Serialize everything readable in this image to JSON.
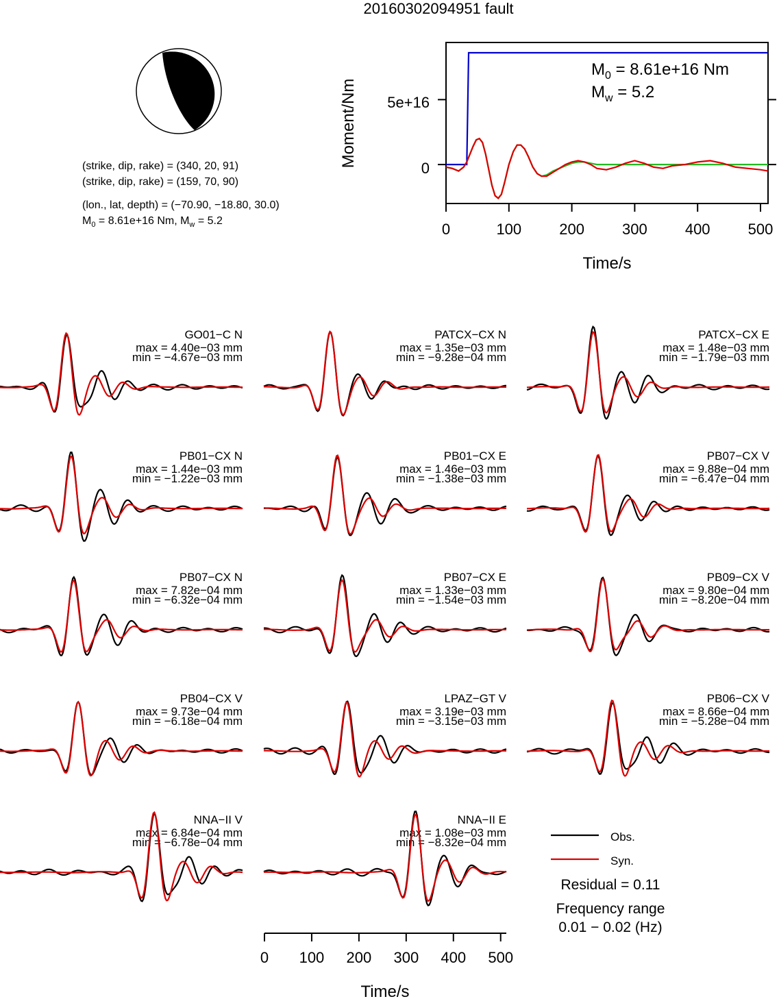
{
  "title": "20160302094951 fault",
  "beachball": {
    "lines": [
      "(strike, dip, rake) = (340, 20, 91)",
      "(strike, dip, rake) = (159, 70, 90)",
      "(lon., lat, depth) = (−70.90, −18.80, 30.0)"
    ],
    "m0_prefix": "M",
    "m0_sub": "0",
    "m0_value": " = 8.61e+16 Nm, M",
    "mw_sub": "w",
    "mw_value": " = 5.2"
  },
  "stf": {
    "m0_prefix": "M",
    "m0_sub": "0",
    "m0_value": " = 8.61e+16 Nm",
    "mw_prefix": "M",
    "mw_sub": "w",
    "mw_value": " = 5.2",
    "ylabel": "Moment/Nm",
    "xlabel": "Time/s",
    "yticks": [
      "0",
      "5e+16"
    ],
    "xticks": [
      "0",
      "100",
      "200",
      "300",
      "400",
      "500"
    ]
  },
  "waveform_xlabel": "Time/s",
  "waveform_xticks": [
    "0",
    "100",
    "200",
    "300",
    "400",
    "500"
  ],
  "legend": {
    "obs": "Obs.",
    "syn": "Syn.",
    "residual": "Residual = 0.11",
    "freq_label": "Frequency range",
    "freq_value": "0.01 − 0.02 (Hz)"
  },
  "colors": {
    "observed": "#000000",
    "synthetic": "#dd0000",
    "moment_rate": "#22bb22",
    "cumulative_moment": "#0000cc"
  },
  "chart_data": [
    {
      "type": "line",
      "xlabel": "Time/s",
      "ylabel": "Moment/Nm",
      "xlim": [
        0,
        512
      ],
      "ylim": [
        -3e+16,
        9.4e+16
      ],
      "series": [
        {
          "x": [
            0,
            33,
            36,
            40,
            512
          ],
          "y": [
            0,
            0,
            8.61e+16,
            8.61e+16,
            8.61e+16
          ]
        },
        {
          "x": [
            0,
            10,
            20,
            28,
            33,
            38,
            43,
            48,
            53,
            58,
            63,
            68,
            73,
            78,
            83,
            88,
            93,
            100,
            107,
            113,
            119,
            125,
            131,
            138,
            145,
            152,
            160,
            170,
            180,
            190,
            200,
            210,
            220,
            230,
            240,
            255,
            270,
            285,
            300,
            315,
            330,
            345,
            360,
            380,
            400,
            420,
            440,
            460,
            480,
            500,
            512
          ],
          "y": [
            -2000000000000000.0,
            -3000000000000000.0,
            -5000000000000000.0,
            -2000000000000000.0,
            2000000000000000.0,
            8000000000000000.0,
            1.4e+16,
            1.9e+16,
            2e+16,
            1.7e+16,
            8000000000000000.0,
            -4000000000000000.0,
            -1.6e+16,
            -2.4e+16,
            -2.6e+16,
            -2.3e+16,
            -1.4e+16,
            0,
            1e+16,
            1.5e+16,
            1.5e+16,
            1.2e+16,
            6000000000000000.0,
            -2000000000000000.0,
            -7000000000000000.0,
            -9000000000000000.0,
            -8000000000000000.0,
            -5000000000000000.0,
            -3000000000000000.0,
            -1000000000000000.0,
            1000000000000000.0,
            2000000000000000.0,
            2000000000000000.0,
            1000000000000000.0,
            0,
            0,
            0,
            0,
            0,
            0,
            0,
            0,
            0,
            0,
            0,
            0,
            0,
            0,
            0,
            0,
            0
          ]
        },
        {
          "x": [
            0,
            10,
            20,
            28,
            33,
            38,
            43,
            48,
            53,
            58,
            63,
            68,
            73,
            78,
            83,
            88,
            93,
            100,
            107,
            113,
            119,
            125,
            131,
            138,
            145,
            152,
            160,
            170,
            180,
            190,
            200,
            210,
            220,
            230,
            240,
            255,
            270,
            285,
            300,
            315,
            330,
            345,
            360,
            380,
            400,
            420,
            440,
            460,
            480,
            500,
            512
          ],
          "y": [
            -2000000000000000.0,
            -3000000000000000.0,
            -5000000000000000.0,
            -2000000000000000.0,
            2000000000000000.0,
            8000000000000000.0,
            1.4e+16,
            1.9e+16,
            2e+16,
            1.7e+16,
            8000000000000000.0,
            -4000000000000000.0,
            -1.6e+16,
            -2.4e+16,
            -2.6e+16,
            -2.3e+16,
            -1.4e+16,
            0,
            1e+16,
            1.5e+16,
            1.5e+16,
            1.2e+16,
            6000000000000000.0,
            -2000000000000000.0,
            -7000000000000000.0,
            -9000000000000000.0,
            -9000000000000000.0,
            -6000000000000000.0,
            -3000000000000000.0,
            0,
            2000000000000000.0,
            3000000000000000.0,
            2000000000000000.0,
            0,
            -3000000000000000.0,
            -4000000000000000.0,
            -2000000000000000.0,
            1000000000000000.0,
            3000000000000000.0,
            1000000000000000.0,
            -2000000000000000.0,
            -3000000000000000.0,
            -1000000000000000.0,
            0,
            2000000000000000.0,
            3000000000000000.0,
            1000000000000000.0,
            -2000000000000000.0,
            -3000000000000000.0,
            -4000000000000000.0,
            -5000000000000000.0
          ]
        }
      ]
    },
    {
      "type": "line",
      "xlabel": "Time/s",
      "xlim": [
        0,
        512
      ],
      "xticks": [
        0,
        100,
        200,
        300,
        400,
        500
      ],
      "stations": [
        {
          "name": "GO01−C N",
          "max": "max = 4.40e−03 mm",
          "min": "min = −4.67e−03 mm",
          "peak": 140
        },
        {
          "name": "PATCX−CX N",
          "max": "max = 1.35e−03 mm",
          "min": "min = −9.28e−04 mm",
          "peak": 140
        },
        {
          "name": "PATCX−CX E",
          "max": "max = 1.48e−03 mm",
          "min": "min = −1.79e−03 mm",
          "peak": 140
        },
        {
          "name": "PB01−CX N",
          "max": "max = 1.44e−03 mm",
          "min": "min = −1.22e−03 mm",
          "peak": 150
        },
        {
          "name": "PB01−CX E",
          "max": "max = 1.46e−03 mm",
          "min": "min = −1.38e−03 mm",
          "peak": 155
        },
        {
          "name": "PB07−CX V",
          "max": "max = 9.88e−04 mm",
          "min": "min = −6.47e−04 mm",
          "peak": 150
        },
        {
          "name": "PB07−CX N",
          "max": "max = 7.82e−04 mm",
          "min": "min = −6.32e−04 mm",
          "peak": 155
        },
        {
          "name": "PB07−CX E",
          "max": "max = 1.33e−03 mm",
          "min": "min = −1.54e−03 mm",
          "peak": 165
        },
        {
          "name": "PB09−CX V",
          "max": "max = 9.80e−04 mm",
          "min": "min = −8.20e−04 mm",
          "peak": 160
        },
        {
          "name": "PB04−CX V",
          "max": "max = 9.73e−04 mm",
          "min": "min = −6.18e−04 mm",
          "peak": 165
        },
        {
          "name": "LPAZ−GT V",
          "max": "max = 3.19e−03 mm",
          "min": "min = −3.15e−03 mm",
          "peak": 175
        },
        {
          "name": "PB06−CX V",
          "max": "max = 8.66e−04 mm",
          "min": "min = −5.28e−04 mm",
          "peak": 180
        },
        {
          "name": "NNA−II V",
          "max": "max = 6.84e−04 mm",
          "min": "min = −6.78e−04 mm",
          "peak": 325
        },
        {
          "name": "NNA−II E",
          "max": "max = 1.08e−03 mm",
          "min": "min = −8.32e−04 mm",
          "peak": 320
        }
      ]
    }
  ]
}
